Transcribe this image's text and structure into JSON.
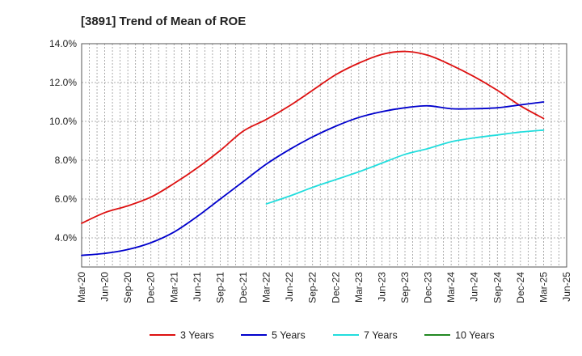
{
  "chart_data": {
    "type": "line",
    "title": "[3891]  Trend of Mean of ROE",
    "xlabel": "",
    "ylabel": "",
    "x_ticks": [
      "Mar-20",
      "Jun-20",
      "Sep-20",
      "Dec-20",
      "Mar-21",
      "Jun-21",
      "Sep-21",
      "Dec-21",
      "Mar-22",
      "Jun-22",
      "Sep-22",
      "Dec-22",
      "Mar-23",
      "Jun-23",
      "Sep-23",
      "Dec-23",
      "Mar-24",
      "Jun-24",
      "Sep-24",
      "Dec-24",
      "Mar-25",
      "Jun-25"
    ],
    "y_ticks": [
      "4.0%",
      "6.0%",
      "8.0%",
      "10.0%",
      "12.0%",
      "14.0%"
    ],
    "y_tick_values": [
      4.0,
      6.0,
      8.0,
      10.0,
      12.0,
      14.0
    ],
    "ylim": [
      2.5,
      14.0
    ],
    "grid": true,
    "legend_position": "bottom",
    "series": [
      {
        "name": "3 Years",
        "color": "#dd1111",
        "x": [
          "Mar-20",
          "Jun-20",
          "Sep-20",
          "Dec-20",
          "Mar-21",
          "Jun-21",
          "Sep-21",
          "Dec-21",
          "Mar-22",
          "Jun-22",
          "Sep-22",
          "Dec-22",
          "Mar-23",
          "Jun-23",
          "Sep-23",
          "Dec-23",
          "Mar-24",
          "Jun-24",
          "Sep-24",
          "Dec-24",
          "Mar-25"
        ],
        "values": [
          4.75,
          5.3,
          5.65,
          6.1,
          6.8,
          7.6,
          8.5,
          9.5,
          10.1,
          10.8,
          11.6,
          12.4,
          13.0,
          13.45,
          13.6,
          13.4,
          12.9,
          12.3,
          11.6,
          10.8,
          10.15
        ]
      },
      {
        "name": "5 Years",
        "color": "#0000cc",
        "x": [
          "Mar-20",
          "Jun-20",
          "Sep-20",
          "Dec-20",
          "Mar-21",
          "Jun-21",
          "Sep-21",
          "Dec-21",
          "Mar-22",
          "Jun-22",
          "Sep-22",
          "Dec-22",
          "Mar-23",
          "Jun-23",
          "Sep-23",
          "Dec-23",
          "Mar-24",
          "Jun-24",
          "Sep-24",
          "Dec-24",
          "Mar-25"
        ],
        "values": [
          3.1,
          3.2,
          3.4,
          3.75,
          4.3,
          5.1,
          6.0,
          6.9,
          7.8,
          8.55,
          9.2,
          9.75,
          10.2,
          10.5,
          10.7,
          10.8,
          10.65,
          10.65,
          10.7,
          10.85,
          11.0
        ]
      },
      {
        "name": "7 Years",
        "color": "#22dddd",
        "x": [
          "Mar-22",
          "Jun-22",
          "Sep-22",
          "Dec-22",
          "Mar-23",
          "Jun-23",
          "Sep-23",
          "Dec-23",
          "Mar-24",
          "Jun-24",
          "Sep-24",
          "Dec-24",
          "Mar-25"
        ],
        "values": [
          5.75,
          6.15,
          6.6,
          7.0,
          7.4,
          7.85,
          8.3,
          8.6,
          8.95,
          9.15,
          9.3,
          9.45,
          9.55
        ]
      },
      {
        "name": "10 Years",
        "color": "#228822",
        "x": [],
        "values": []
      }
    ]
  }
}
